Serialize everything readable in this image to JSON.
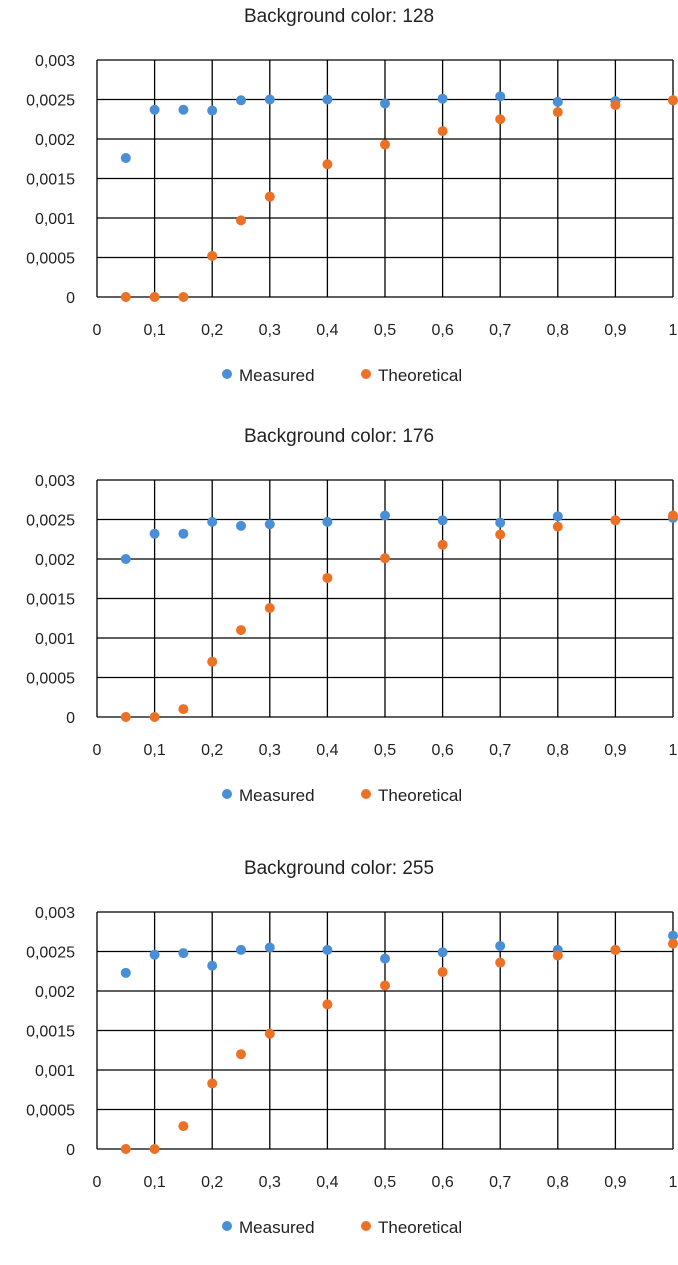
{
  "colors": {
    "measured": "#4a8fd6",
    "theoretical": "#ed7125",
    "grid": "#000000"
  },
  "chart_data": [
    {
      "type": "scatter",
      "title": "Background color: 128",
      "xlim": [
        0,
        1
      ],
      "ylim": [
        0,
        0.003
      ],
      "x_ticks": [
        "0",
        "0,1",
        "0,2",
        "0,3",
        "0,4",
        "0,5",
        "0,6",
        "0,7",
        "0,8",
        "0,9",
        "1"
      ],
      "y_ticks": [
        "0",
        "0,0005",
        "0,001",
        "0,0015",
        "0,002",
        "0,0025",
        "0,003"
      ],
      "grid": true,
      "legend_position": "bottom",
      "series": [
        {
          "name": "Measured",
          "x": [
            0.05,
            0.1,
            0.15,
            0.2,
            0.25,
            0.3,
            0.4,
            0.5,
            0.6,
            0.7,
            0.8,
            0.9,
            1.0
          ],
          "y": [
            0.00176,
            0.00237,
            0.00237,
            0.00236,
            0.00249,
            0.0025,
            0.0025,
            0.00245,
            0.00251,
            0.00254,
            0.00247,
            0.00248,
            0.00249
          ]
        },
        {
          "name": "Theoretical",
          "x": [
            0.05,
            0.1,
            0.15,
            0.2,
            0.25,
            0.3,
            0.4,
            0.5,
            0.6,
            0.7,
            0.8,
            0.9,
            1.0
          ],
          "y": [
            0,
            0,
            0,
            0.00052,
            0.00097,
            0.00127,
            0.00168,
            0.00193,
            0.0021,
            0.00225,
            0.00234,
            0.00243,
            0.00249
          ]
        }
      ]
    },
    {
      "type": "scatter",
      "title": "Background color: 176",
      "xlim": [
        0,
        1
      ],
      "ylim": [
        0,
        0.003
      ],
      "x_ticks": [
        "0",
        "0,1",
        "0,2",
        "0,3",
        "0,4",
        "0,5",
        "0,6",
        "0,7",
        "0,8",
        "0,9",
        "1"
      ],
      "y_ticks": [
        "0",
        "0,0005",
        "0,001",
        "0,0015",
        "0,002",
        "0,0025",
        "0,003"
      ],
      "grid": true,
      "legend_position": "bottom",
      "series": [
        {
          "name": "Measured",
          "x": [
            0.05,
            0.1,
            0.15,
            0.2,
            0.25,
            0.3,
            0.4,
            0.5,
            0.6,
            0.7,
            0.8,
            0.9,
            1.0
          ],
          "y": [
            0.002,
            0.00232,
            0.00232,
            0.00247,
            0.00242,
            0.00244,
            0.00247,
            0.00255,
            0.00249,
            0.00246,
            0.00254,
            0.00249,
            0.00252
          ]
        },
        {
          "name": "Theoretical",
          "x": [
            0.05,
            0.1,
            0.15,
            0.2,
            0.25,
            0.3,
            0.4,
            0.5,
            0.6,
            0.7,
            0.8,
            0.9,
            1.0
          ],
          "y": [
            0,
            0,
            0.0001,
            0.0007,
            0.0011,
            0.00138,
            0.00176,
            0.00201,
            0.00218,
            0.00231,
            0.00241,
            0.00249,
            0.00255
          ]
        }
      ]
    },
    {
      "type": "scatter",
      "title": "Background color: 255",
      "xlim": [
        0,
        1
      ],
      "ylim": [
        0,
        0.003
      ],
      "x_ticks": [
        "0",
        "0,1",
        "0,2",
        "0,3",
        "0,4",
        "0,5",
        "0,6",
        "0,7",
        "0,8",
        "0,9",
        "1"
      ],
      "y_ticks": [
        "0",
        "0,0005",
        "0,001",
        "0,0015",
        "0,002",
        "0,0025",
        "0,003"
      ],
      "grid": true,
      "legend_position": "bottom",
      "series": [
        {
          "name": "Measured",
          "x": [
            0.05,
            0.1,
            0.15,
            0.2,
            0.25,
            0.3,
            0.4,
            0.5,
            0.6,
            0.7,
            0.8,
            0.9,
            1.0
          ],
          "y": [
            0.00223,
            0.00246,
            0.00248,
            0.00232,
            0.00252,
            0.00255,
            0.00252,
            0.00241,
            0.00249,
            0.00257,
            0.00252,
            0.00252,
            0.0027
          ]
        },
        {
          "name": "Theoretical",
          "x": [
            0.05,
            0.1,
            0.15,
            0.2,
            0.25,
            0.3,
            0.4,
            0.5,
            0.6,
            0.7,
            0.8,
            0.9,
            1.0
          ],
          "y": [
            0,
            0,
            0.00029,
            0.00083,
            0.0012,
            0.00146,
            0.00183,
            0.00207,
            0.00224,
            0.00236,
            0.00245,
            0.00252,
            0.0026
          ]
        }
      ]
    }
  ]
}
